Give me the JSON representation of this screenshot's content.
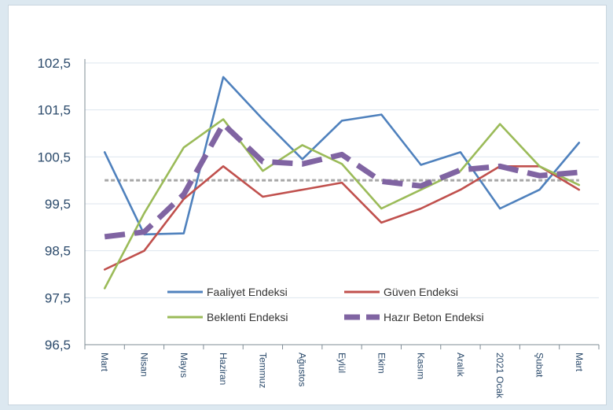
{
  "chart_data": {
    "type": "line",
    "title": "",
    "xlabel": "",
    "ylabel": "",
    "categories": [
      "Mart",
      "Nisan",
      "Mayıs",
      "Haziran",
      "Temmuz",
      "Ağustos",
      "Eylül",
      "Ekim",
      "Kasım",
      "Aralık",
      "2021 Ocak",
      "Şubat",
      "Mart"
    ],
    "y_ticks": [
      "96,5",
      "97,5",
      "98,5",
      "99,5",
      "100,5",
      "101,5",
      "102,5"
    ],
    "ylim": [
      96.5,
      102.5
    ],
    "grid": true,
    "legend_position": "bottom-center inside plot",
    "reference_line": {
      "value": 100,
      "style": "dashed gray"
    },
    "series": [
      {
        "name": "Faaliyet Endeksi",
        "color": "#4f81bd",
        "style": "solid",
        "values": [
          100.6,
          98.85,
          98.87,
          102.2,
          101.3,
          100.45,
          101.27,
          101.4,
          100.33,
          100.6,
          99.4,
          99.8,
          100.8
        ]
      },
      {
        "name": "Güven Endeksi",
        "color": "#c0504d",
        "style": "solid",
        "values": [
          98.1,
          98.5,
          99.6,
          100.3,
          99.65,
          99.8,
          99.95,
          99.1,
          99.4,
          99.8,
          100.3,
          100.3,
          99.8
        ]
      },
      {
        "name": "Beklenti Endeksi",
        "color": "#9bbb59",
        "style": "solid",
        "values": [
          97.7,
          99.3,
          100.7,
          101.3,
          100.2,
          100.75,
          100.35,
          99.4,
          99.8,
          100.2,
          101.2,
          100.3,
          99.9
        ]
      },
      {
        "name": "Hazır Beton Endeksi",
        "color": "#8064a2",
        "style": "thick-dashed",
        "values": [
          98.8,
          98.9,
          99.7,
          101.2,
          100.4,
          100.35,
          100.55,
          99.98,
          99.88,
          100.22,
          100.3,
          100.1,
          100.17
        ]
      }
    ]
  }
}
